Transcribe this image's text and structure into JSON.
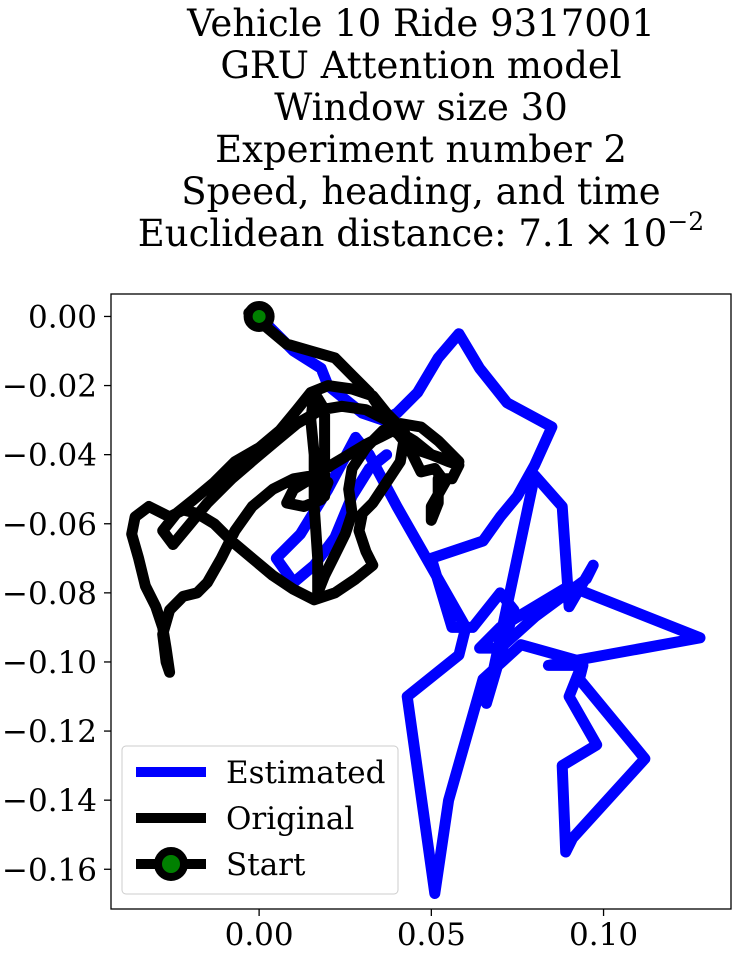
{
  "chart_data": {
    "type": "line",
    "title_lines": [
      "Vehicle 10 Ride 9317001",
      "GRU Attention model",
      "Window size 30",
      "Experiment number 2",
      "Speed, heading, and time"
    ],
    "title_metric_prefix": "Euclidean distance: 7.1",
    "title_metric_times": "×",
    "title_metric_base": "10",
    "title_metric_exp": "−2",
    "xlabel": "",
    "ylabel": "",
    "xlim": [
      -0.043,
      0.137
    ],
    "ylim": [
      -0.1715,
      0.0065
    ],
    "grid": false,
    "legend_position": "lower-left",
    "x_ticks": [
      {
        "value": 0.0,
        "label": "0.00"
      },
      {
        "value": 0.05,
        "label": "0.05"
      },
      {
        "value": 0.1,
        "label": "0.10"
      }
    ],
    "y_ticks": [
      {
        "value": 0.0,
        "label": "0.00"
      },
      {
        "value": -0.02,
        "label": "−0.02"
      },
      {
        "value": -0.04,
        "label": "−0.04"
      },
      {
        "value": -0.06,
        "label": "−0.06"
      },
      {
        "value": -0.08,
        "label": "−0.08"
      },
      {
        "value": -0.1,
        "label": "−0.10"
      },
      {
        "value": -0.12,
        "label": "−0.12"
      },
      {
        "value": -0.14,
        "label": "−0.14"
      },
      {
        "value": -0.16,
        "label": "−0.16"
      }
    ],
    "series": [
      {
        "name": "Estimated",
        "color": "#0000ff",
        "points": [
          [
            0.0,
            0.0
          ],
          [
            0.01,
            -0.01
          ],
          [
            0.018,
            -0.015
          ],
          [
            0.02,
            -0.02
          ],
          [
            0.025,
            -0.024
          ],
          [
            0.03,
            -0.028
          ],
          [
            0.036,
            -0.03
          ],
          [
            0.04,
            -0.028
          ],
          [
            0.046,
            -0.022
          ],
          [
            0.052,
            -0.012
          ],
          [
            0.058,
            -0.005
          ],
          [
            0.064,
            -0.015
          ],
          [
            0.072,
            -0.025
          ],
          [
            0.085,
            -0.032
          ],
          [
            0.08,
            -0.043
          ],
          [
            0.075,
            -0.052
          ],
          [
            0.07,
            -0.058
          ],
          [
            0.065,
            -0.065
          ],
          [
            0.05,
            -0.07
          ],
          [
            0.056,
            -0.09
          ],
          [
            0.062,
            -0.09
          ],
          [
            0.07,
            -0.08
          ],
          [
            0.074,
            -0.085
          ],
          [
            0.066,
            -0.112
          ],
          [
            0.08,
            -0.046
          ],
          [
            0.088,
            -0.055
          ],
          [
            0.09,
            -0.084
          ],
          [
            0.097,
            -0.072
          ],
          [
            0.095,
            -0.076
          ],
          [
            0.08,
            -0.087
          ],
          [
            0.07,
            -0.096
          ],
          [
            0.064,
            -0.096
          ],
          [
            0.07,
            -0.09
          ],
          [
            0.09,
            -0.078
          ],
          [
            0.128,
            -0.093
          ],
          [
            0.084,
            -0.101
          ],
          [
            0.094,
            -0.101
          ],
          [
            0.093,
            -0.105
          ],
          [
            0.112,
            -0.128
          ],
          [
            0.091,
            -0.151
          ],
          [
            0.089,
            -0.155
          ],
          [
            0.088,
            -0.13
          ],
          [
            0.098,
            -0.124
          ],
          [
            0.09,
            -0.11
          ],
          [
            0.094,
            -0.1
          ],
          [
            0.076,
            -0.095
          ],
          [
            0.065,
            -0.105
          ],
          [
            0.055,
            -0.14
          ],
          [
            0.051,
            -0.167
          ],
          [
            0.043,
            -0.11
          ],
          [
            0.058,
            -0.098
          ],
          [
            0.06,
            -0.09
          ],
          [
            0.04,
            -0.055
          ],
          [
            0.032,
            -0.04
          ],
          [
            0.028,
            -0.035
          ],
          [
            0.02,
            -0.05
          ],
          [
            0.012,
            -0.063
          ],
          [
            0.005,
            -0.07
          ],
          [
            0.01,
            -0.077
          ],
          [
            0.016,
            -0.072
          ],
          [
            0.022,
            -0.064
          ],
          [
            0.027,
            -0.052
          ],
          [
            0.032,
            -0.044
          ],
          [
            0.037,
            -0.04
          ]
        ]
      },
      {
        "name": "Original",
        "color": "#000000",
        "points": [
          [
            -0.003,
            0.001
          ],
          [
            0.002,
            -0.003
          ],
          [
            0.008,
            -0.008
          ],
          [
            0.015,
            -0.01
          ],
          [
            0.022,
            -0.012
          ],
          [
            0.027,
            -0.017
          ],
          [
            0.032,
            -0.022
          ],
          [
            0.036,
            -0.028
          ],
          [
            0.04,
            -0.033
          ],
          [
            0.045,
            -0.036
          ],
          [
            0.05,
            -0.04
          ],
          [
            0.055,
            -0.042
          ],
          [
            0.058,
            -0.043
          ],
          [
            0.056,
            -0.047
          ],
          [
            0.052,
            -0.047
          ],
          [
            0.052,
            -0.054
          ],
          [
            0.05,
            -0.059
          ],
          [
            0.05,
            -0.055
          ],
          [
            0.054,
            -0.048
          ],
          [
            0.051,
            -0.044
          ],
          [
            0.047,
            -0.045
          ],
          [
            0.044,
            -0.039
          ],
          [
            0.042,
            -0.033
          ],
          [
            0.037,
            -0.028
          ],
          [
            0.033,
            -0.023
          ],
          [
            0.027,
            -0.021
          ],
          [
            0.02,
            -0.02
          ],
          [
            0.015,
            -0.022
          ],
          [
            0.011,
            -0.027
          ],
          [
            0.006,
            -0.033
          ],
          [
            0.0,
            -0.038
          ],
          [
            -0.007,
            -0.042
          ],
          [
            -0.013,
            -0.048
          ],
          [
            -0.019,
            -0.053
          ],
          [
            -0.024,
            -0.057
          ],
          [
            -0.028,
            -0.062
          ],
          [
            -0.025,
            -0.066
          ],
          [
            -0.02,
            -0.06
          ],
          [
            -0.015,
            -0.054
          ],
          [
            -0.008,
            -0.047
          ],
          [
            -0.001,
            -0.041
          ],
          [
            0.005,
            -0.036
          ],
          [
            0.011,
            -0.031
          ],
          [
            0.018,
            -0.027
          ],
          [
            0.024,
            -0.026
          ],
          [
            0.031,
            -0.027
          ],
          [
            0.037,
            -0.03
          ],
          [
            0.042,
            -0.036
          ],
          [
            0.041,
            -0.042
          ],
          [
            0.037,
            -0.048
          ],
          [
            0.033,
            -0.054
          ],
          [
            0.03,
            -0.057
          ],
          [
            0.029,
            -0.062
          ],
          [
            0.031,
            -0.068
          ],
          [
            0.033,
            -0.072
          ],
          [
            0.028,
            -0.076
          ],
          [
            0.022,
            -0.08
          ],
          [
            0.016,
            -0.082
          ],
          [
            0.01,
            -0.079
          ],
          [
            0.004,
            -0.075
          ],
          [
            -0.002,
            -0.07
          ],
          [
            -0.008,
            -0.065
          ],
          [
            -0.013,
            -0.06
          ],
          [
            -0.018,
            -0.057
          ],
          [
            -0.022,
            -0.056
          ],
          [
            -0.026,
            -0.058
          ],
          [
            -0.032,
            -0.055
          ],
          [
            -0.036,
            -0.058
          ],
          [
            -0.037,
            -0.063
          ],
          [
            -0.035,
            -0.07
          ],
          [
            -0.033,
            -0.078
          ],
          [
            -0.03,
            -0.084
          ],
          [
            -0.028,
            -0.09
          ],
          [
            -0.027,
            -0.096
          ],
          [
            -0.026,
            -0.103
          ],
          [
            -0.027,
            -0.1
          ],
          [
            -0.028,
            -0.092
          ],
          [
            -0.026,
            -0.085
          ],
          [
            -0.022,
            -0.081
          ],
          [
            -0.018,
            -0.08
          ],
          [
            -0.015,
            -0.077
          ],
          [
            -0.011,
            -0.07
          ],
          [
            -0.007,
            -0.062
          ],
          [
            -0.002,
            -0.055
          ],
          [
            0.004,
            -0.05
          ],
          [
            0.01,
            -0.047
          ],
          [
            0.016,
            -0.046
          ],
          [
            0.02,
            -0.048
          ],
          [
            0.018,
            -0.053
          ],
          [
            0.013,
            -0.055
          ],
          [
            0.008,
            -0.054
          ],
          [
            0.01,
            -0.05
          ],
          [
            0.015,
            -0.047
          ],
          [
            0.021,
            -0.043
          ],
          [
            0.026,
            -0.04
          ],
          [
            0.031,
            -0.037
          ],
          [
            0.035,
            -0.035
          ],
          [
            0.039,
            -0.033
          ],
          [
            0.043,
            -0.036
          ],
          [
            0.047,
            -0.039
          ],
          [
            0.053,
            -0.041
          ],
          [
            0.058,
            -0.042
          ],
          [
            0.052,
            -0.036
          ],
          [
            0.047,
            -0.032
          ],
          [
            0.041,
            -0.031
          ],
          [
            0.036,
            -0.033
          ],
          [
            0.031,
            -0.038
          ],
          [
            0.027,
            -0.044
          ],
          [
            0.026,
            -0.05
          ],
          [
            0.027,
            -0.057
          ],
          [
            0.025,
            -0.063
          ],
          [
            0.022,
            -0.069
          ],
          [
            0.019,
            -0.075
          ],
          [
            0.017,
            -0.08
          ],
          [
            0.017,
            -0.07
          ],
          [
            0.016,
            -0.055
          ],
          [
            0.016,
            -0.04
          ],
          [
            0.015,
            -0.03
          ],
          [
            0.016,
            -0.022
          ],
          [
            0.019,
            -0.027
          ],
          [
            0.019,
            -0.04
          ],
          [
            0.019,
            -0.052
          ]
        ]
      }
    ],
    "start": {
      "name": "Start",
      "x": 0.0,
      "y": 0.0,
      "outer_color": "#000000",
      "inner_color": "#008000"
    }
  }
}
